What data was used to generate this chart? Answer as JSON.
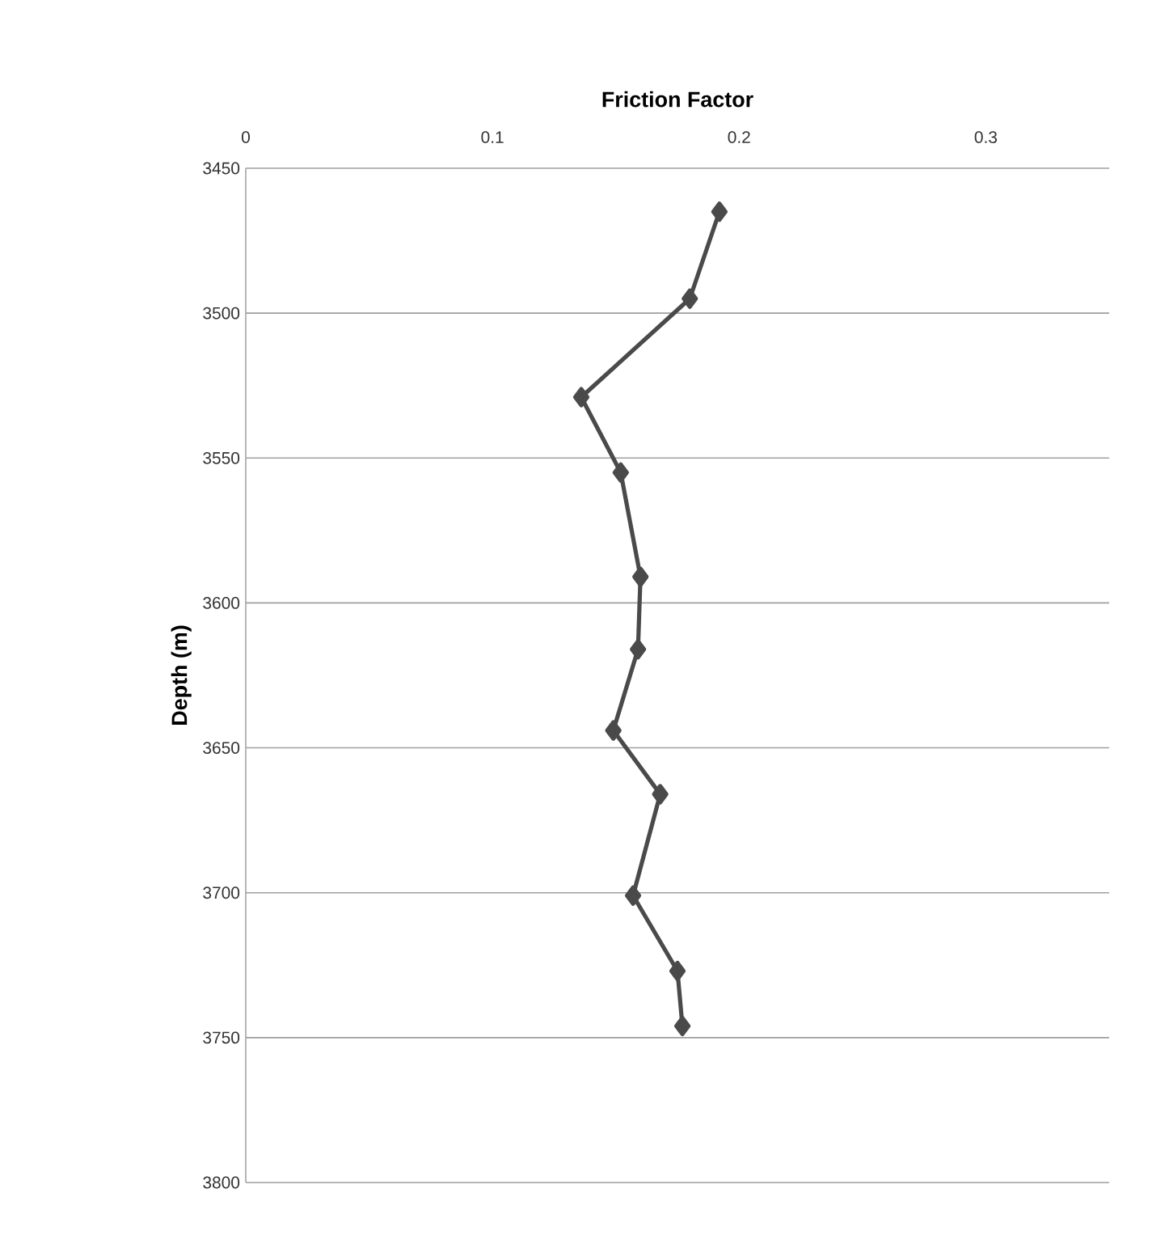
{
  "chart_data": {
    "type": "line",
    "xlabel": "Friction Factor",
    "ylabel": "Depth (m)",
    "x": [
      0.192,
      0.18,
      0.136,
      0.152,
      0.16,
      0.159,
      0.149,
      0.168,
      0.157,
      0.175,
      0.177
    ],
    "values": [
      3465,
      3495,
      3529,
      3555,
      3591,
      3616,
      3644,
      3666,
      3701,
      3727,
      3746
    ],
    "color": "#4a4a4a",
    "marker": "diamond",
    "line_style": "solid",
    "grid": "y",
    "xlim": [
      0,
      0.35
    ],
    "xticks": [
      0,
      0.1,
      0.2,
      0.3
    ],
    "ylim": [
      3800,
      3450
    ],
    "yticks": [
      3450,
      3500,
      3550,
      3600,
      3650,
      3700,
      3750,
      3800
    ]
  }
}
